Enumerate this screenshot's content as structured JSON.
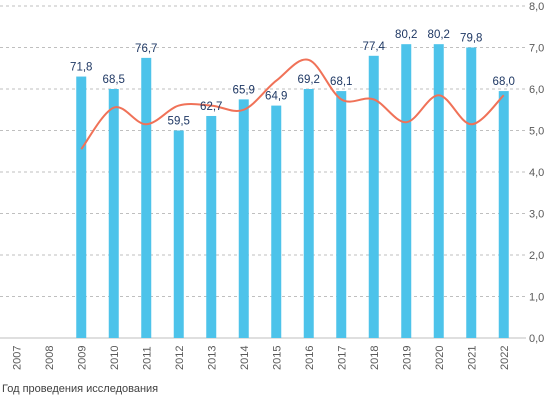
{
  "chart_data": {
    "type": "bar",
    "categories": [
      "2007",
      "2008",
      "2009",
      "2010",
      "2011",
      "2012",
      "2013",
      "2014",
      "2015",
      "2016",
      "2017",
      "2018",
      "2019",
      "2020",
      "2021",
      "2022"
    ],
    "series": [
      {
        "type": "bar",
        "axis": "right",
        "values": [
          null,
          null,
          6.3,
          6.0,
          6.75,
          5.0,
          5.35,
          5.75,
          5.6,
          6.0,
          5.95,
          6.8,
          7.08,
          7.08,
          7.0,
          5.95
        ],
        "data_labels": [
          "",
          "",
          "71,8",
          "68,5",
          "76,7",
          "59,5",
          "62,7",
          "65,9",
          "64,9",
          "69,2",
          "68,1",
          "77,4",
          "80,2",
          "80,2",
          "79,8",
          "68,0"
        ],
        "color": "#4dc3ea"
      },
      {
        "type": "line",
        "axis": "right",
        "smooth": true,
        "values": [
          null,
          null,
          4.55,
          5.55,
          5.15,
          5.6,
          5.6,
          5.5,
          6.2,
          6.7,
          5.75,
          5.75,
          5.2,
          5.85,
          5.15,
          5.85
        ],
        "color": "#f07258"
      }
    ],
    "y_axis": {
      "position": "right",
      "min": 0,
      "max": 8,
      "step": 1,
      "tick_labels": [
        "0,0",
        "1,0",
        "2,0",
        "3,0",
        "4,0",
        "5,0",
        "6,0",
        "7,0",
        "8,0"
      ]
    },
    "xlabel": "Год проведения исследования",
    "grid": "horizontal dashed"
  }
}
